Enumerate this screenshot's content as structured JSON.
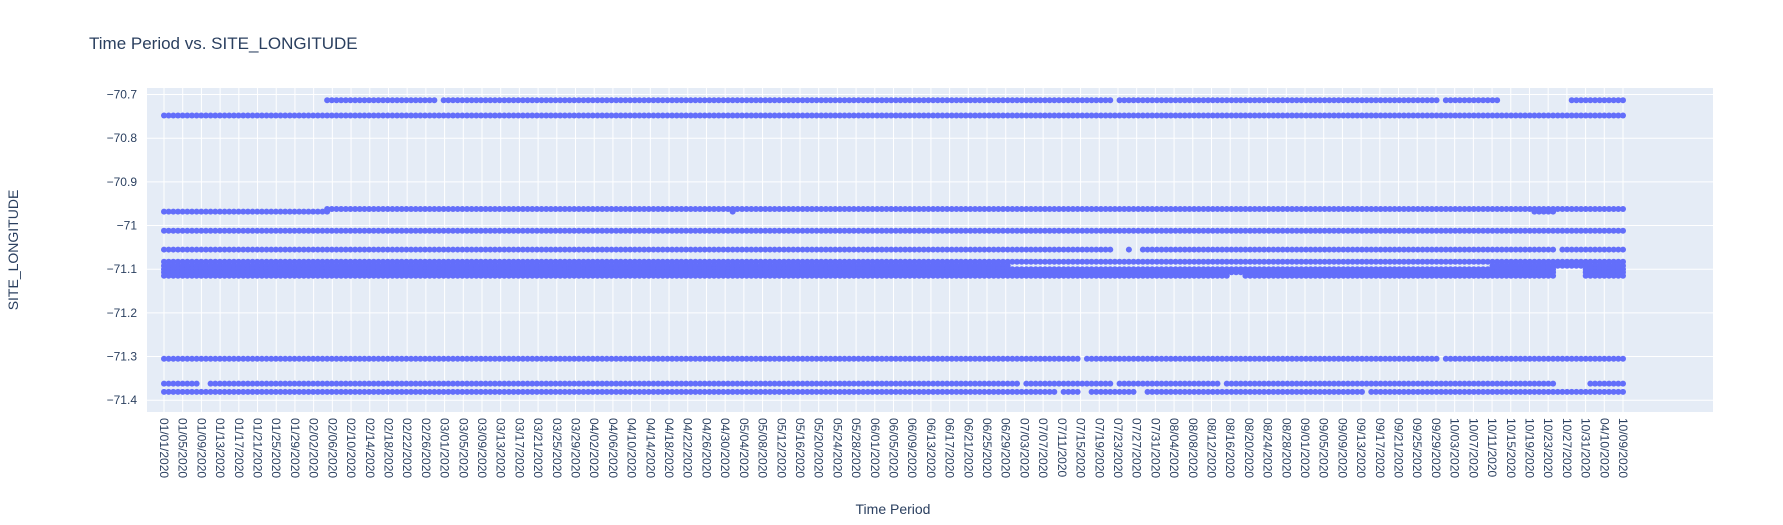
{
  "chart_data": {
    "type": "scatter",
    "title": "Time Period vs. SITE_LONGITUDE",
    "xlabel": "Time Period",
    "ylabel": "SITE_LONGITUDE",
    "ylim": [
      -71.427,
      -70.685
    ],
    "yticks": [
      -70.7,
      -70.8,
      -70.9,
      -71,
      -71.1,
      -71.2,
      -71.3,
      -71.4
    ],
    "ytick_labels": [
      "−70.7",
      "−70.8",
      "−70.9",
      "−71",
      "−71.1",
      "−71.2",
      "−71.3",
      "−71.4"
    ],
    "x_start": "2020-01-01",
    "x_end": "2020-11-09",
    "xtick_labels": [
      "01/01/2020",
      "01/05/2020",
      "01/09/2020",
      "01/13/2020",
      "01/17/2020",
      "01/21/2020",
      "01/25/2020",
      "01/29/2020",
      "02/02/2020",
      "02/06/2020",
      "02/10/2020",
      "02/14/2020",
      "02/18/2020",
      "02/22/2020",
      "02/26/2020",
      "03/01/2020",
      "03/05/2020",
      "03/09/2020",
      "03/13/2020",
      "03/17/2020",
      "03/21/2020",
      "03/25/2020",
      "03/29/2020",
      "04/02/2020",
      "04/06/2020",
      "04/10/2020",
      "04/14/2020",
      "04/18/2020",
      "04/22/2020",
      "04/26/2020",
      "04/30/2020",
      "05/04/2020",
      "05/08/2020",
      "05/12/2020",
      "05/16/2020",
      "05/20/2020",
      "05/24/2020",
      "05/28/2020",
      "06/01/2020",
      "06/05/2020",
      "06/09/2020",
      "06/13/2020",
      "06/17/2020",
      "06/21/2020",
      "06/25/2020",
      "06/29/2020",
      "07/03/2020",
      "07/07/2020",
      "07/11/2020",
      "07/15/2020",
      "07/19/2020",
      "07/23/2020",
      "07/27/2020",
      "07/31/2020",
      "08/04/2020",
      "08/08/2020",
      "08/12/2020",
      "08/16/2020",
      "08/20/2020",
      "08/24/2020",
      "08/28/2020",
      "09/01/2020",
      "09/05/2020",
      "09/09/2020",
      "09/13/2020",
      "09/17/2020",
      "09/21/2020",
      "09/25/2020",
      "09/29/2020",
      "10/03/2020",
      "10/07/2020",
      "10/11/2020",
      "10/15/2020",
      "10/19/2020",
      "10/23/2020",
      "10/27/2020",
      "10/31/2020",
      "04/10/2020",
      "10/09/2020"
    ],
    "marker_color": "#636efa",
    "series": [
      {
        "y": -70.713,
        "segments": [
          [
            "2020-02-05",
            "2020-02-28"
          ],
          [
            "2020-03-02",
            "2020-07-22"
          ],
          [
            "2020-07-24",
            "2020-09-30"
          ],
          [
            "2020-10-02",
            "2020-10-13"
          ],
          [
            "2020-10-29",
            "2020-11-09"
          ]
        ],
        "points": [
          "2020-03-01"
        ]
      },
      {
        "y": -70.748,
        "segments": [
          [
            "2020-01-01",
            "2020-11-09"
          ]
        ]
      },
      {
        "y": -70.962,
        "segments": [
          [
            "2020-02-05",
            "2020-11-09"
          ]
        ]
      },
      {
        "y": -70.968,
        "segments": [
          [
            "2020-01-01",
            "2020-02-05"
          ],
          [
            "2020-10-21",
            "2020-10-25"
          ]
        ],
        "points": [
          "2020-05-02"
        ]
      },
      {
        "y": -71.012,
        "segments": [
          [
            "2020-01-01",
            "2020-11-09"
          ]
        ]
      },
      {
        "y": -71.055,
        "segments": [
          [
            "2020-01-01",
            "2020-07-22"
          ],
          [
            "2020-07-29",
            "2020-10-25"
          ],
          [
            "2020-10-27",
            "2020-11-09"
          ]
        ],
        "points": [
          "2020-07-26"
        ]
      },
      {
        "y": -71.083,
        "segments": [
          [
            "2020-01-01",
            "2020-11-09"
          ]
        ]
      },
      {
        "y": -71.092,
        "segments": [
          [
            "2020-01-01",
            "2020-06-30"
          ],
          [
            "2020-10-12",
            "2020-11-09"
          ]
        ]
      },
      {
        "y": -71.1,
        "segments": [
          [
            "2020-01-01",
            "2020-10-25"
          ],
          [
            "2020-11-01",
            "2020-11-09"
          ]
        ]
      },
      {
        "y": -71.107,
        "segments": [
          [
            "2020-01-01",
            "2020-10-25"
          ],
          [
            "2020-11-01",
            "2020-11-09"
          ]
        ]
      },
      {
        "y": -71.115,
        "segments": [
          [
            "2020-01-01",
            "2020-08-16"
          ],
          [
            "2020-08-20",
            "2020-10-25"
          ],
          [
            "2020-11-01",
            "2020-11-09"
          ]
        ]
      },
      {
        "y": -71.305,
        "segments": [
          [
            "2020-01-01",
            "2020-07-15"
          ],
          [
            "2020-07-17",
            "2020-09-30"
          ],
          [
            "2020-10-02",
            "2020-11-09"
          ]
        ]
      },
      {
        "y": -71.362,
        "segments": [
          [
            "2020-01-01",
            "2020-01-08"
          ],
          [
            "2020-01-11",
            "2020-07-02"
          ],
          [
            "2020-07-04",
            "2020-07-22"
          ],
          [
            "2020-07-24",
            "2020-08-14"
          ],
          [
            "2020-08-16",
            "2020-10-25"
          ],
          [
            "2020-11-02",
            "2020-11-09"
          ]
        ]
      },
      {
        "y": -71.381,
        "segments": [
          [
            "2020-01-01",
            "2020-07-10"
          ],
          [
            "2020-07-12",
            "2020-07-15"
          ],
          [
            "2020-07-18",
            "2020-07-27"
          ],
          [
            "2020-07-30",
            "2020-09-14"
          ],
          [
            "2020-09-16",
            "2020-11-09"
          ]
        ]
      }
    ]
  }
}
